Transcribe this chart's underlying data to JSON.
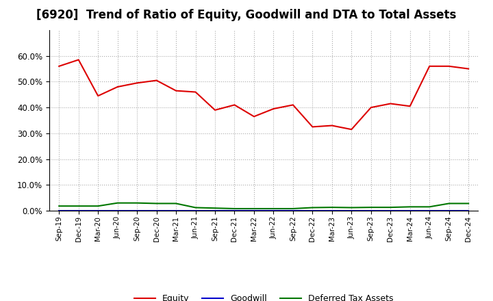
{
  "title": "[6920]  Trend of Ratio of Equity, Goodwill and DTA to Total Assets",
  "x_labels": [
    "Sep-19",
    "Dec-19",
    "Mar-20",
    "Jun-20",
    "Sep-20",
    "Dec-20",
    "Mar-21",
    "Jun-21",
    "Sep-21",
    "Dec-21",
    "Mar-22",
    "Jun-22",
    "Sep-22",
    "Dec-22",
    "Mar-23",
    "Jun-23",
    "Sep-23",
    "Dec-23",
    "Mar-24",
    "Jun-24",
    "Sep-24",
    "Dec-24"
  ],
  "equity": [
    0.56,
    0.585,
    0.445,
    0.48,
    0.495,
    0.505,
    0.465,
    0.46,
    0.39,
    0.41,
    0.365,
    0.395,
    0.41,
    0.325,
    0.33,
    0.315,
    0.4,
    0.415,
    0.405,
    0.56,
    0.56,
    0.55
  ],
  "goodwill": [
    0.0,
    0.0,
    0.0,
    0.0,
    0.0,
    0.0,
    0.0,
    0.0,
    0.0,
    0.0,
    0.0,
    0.0,
    0.0,
    0.0,
    0.0,
    0.0,
    0.0,
    0.0,
    0.0,
    0.0,
    0.0,
    0.0
  ],
  "dta": [
    0.018,
    0.018,
    0.018,
    0.03,
    0.03,
    0.028,
    0.028,
    0.012,
    0.01,
    0.008,
    0.008,
    0.008,
    0.008,
    0.012,
    0.013,
    0.012,
    0.013,
    0.013,
    0.015,
    0.015,
    0.028,
    0.028
  ],
  "equity_color": "#DD0000",
  "goodwill_color": "#0000CC",
  "dta_color": "#007700",
  "ylim": [
    0.0,
    0.7
  ],
  "yticks": [
    0.0,
    0.1,
    0.2,
    0.3,
    0.4,
    0.5,
    0.6
  ],
  "bg_color": "#ffffff",
  "plot_bg_color": "#ffffff",
  "grid_color": "#aaaaaa",
  "title_fontsize": 12,
  "legend_labels": [
    "Equity",
    "Goodwill",
    "Deferred Tax Assets"
  ]
}
